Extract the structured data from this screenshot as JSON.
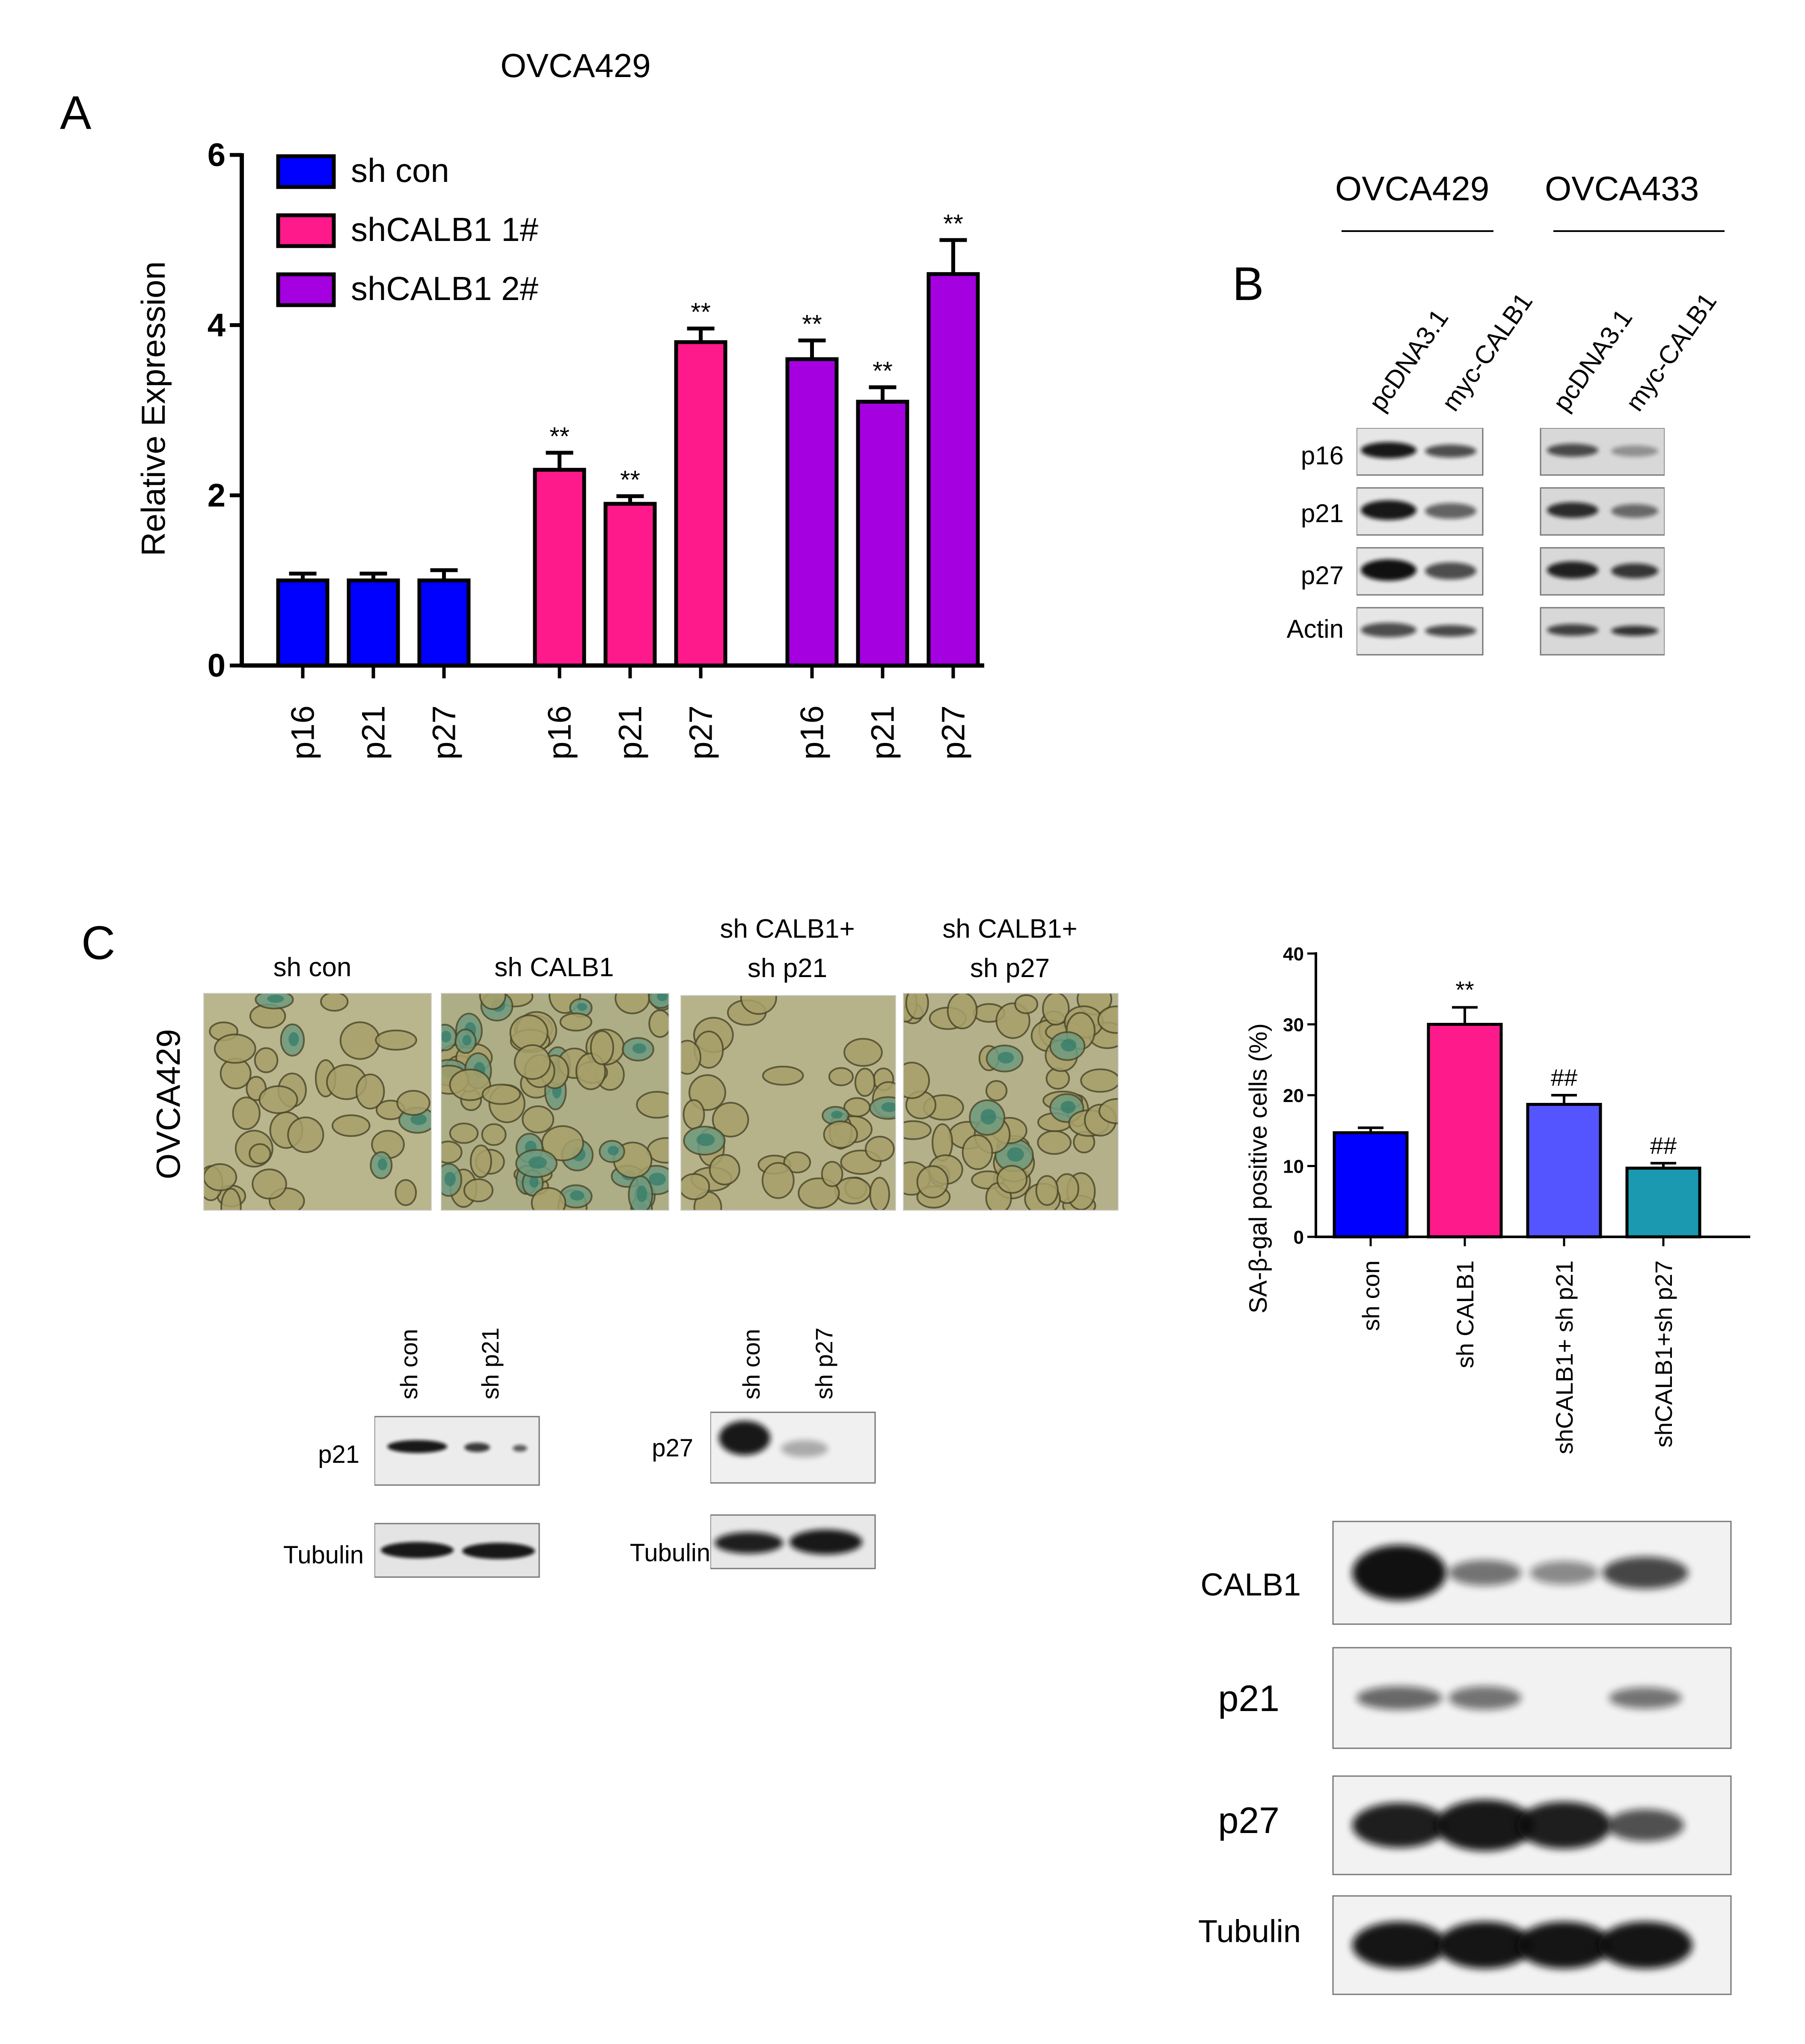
{
  "figure": {
    "panel_letters": {
      "a": "A",
      "b": "B",
      "c": "C"
    }
  },
  "chart_data": [
    {
      "id": "panel-a",
      "type": "bar",
      "title": "OVCA429",
      "ylabel": "Relative Expression",
      "xlabel": "",
      "ylim": [
        0,
        6
      ],
      "yticks": [
        0,
        2,
        4,
        6
      ],
      "categories": [
        "p16",
        "p21",
        "p27"
      ],
      "legend_position": "top-left",
      "series": [
        {
          "name": "sh con",
          "color": "#0000ff",
          "values": [
            1.0,
            1.0,
            1.0
          ],
          "errors": [
            0.08,
            0.08,
            0.12
          ],
          "sig": [
            "",
            "",
            ""
          ]
        },
        {
          "name": "shCALB1 1#",
          "color": "#ff1a8c",
          "values": [
            2.3,
            1.9,
            3.8
          ],
          "errors": [
            0.2,
            0.09,
            0.16
          ],
          "sig": [
            "**",
            "**",
            "**"
          ]
        },
        {
          "name": "shCALB1 2#",
          "color": "#a400e0",
          "values": [
            3.6,
            3.1,
            4.6
          ],
          "errors": [
            0.22,
            0.17,
            0.4
          ],
          "sig": [
            "**",
            "**",
            "**"
          ]
        }
      ]
    },
    {
      "id": "panel-c",
      "type": "bar",
      "ylabel": "SA-β-gal positive cells (%)",
      "xlabel": "",
      "ylim": [
        0,
        40
      ],
      "yticks": [
        0,
        10,
        20,
        30,
        40
      ],
      "categories": [
        "sh con",
        "sh CALB1",
        "shCALB1+ sh p21",
        "shCALB1+sh p27"
      ],
      "colors": [
        "#0000ff",
        "#ff1a8c",
        "#5555ff",
        "#1a99b0"
      ],
      "values": [
        14.7,
        30.0,
        18.7,
        9.7
      ],
      "errors": [
        0.7,
        2.4,
        1.3,
        0.7
      ],
      "sig": [
        "",
        "**",
        "##",
        "##"
      ]
    }
  ],
  "blot_b": {
    "cell_lines": [
      "OVCA429",
      "OVCA433"
    ],
    "lanes": [
      "pcDNA3.1",
      "myc-CALB1",
      "pcDNA3.1",
      "myc-CALB1"
    ],
    "rows": [
      "p16",
      "p21",
      "p27",
      "Actin"
    ]
  },
  "panel_c_images": {
    "row_label": "OVCA429",
    "labels": [
      {
        "line1": "sh con",
        "line2": ""
      },
      {
        "line1": "sh CALB1",
        "line2": ""
      },
      {
        "line1": "sh CALB1+",
        "line2": "sh p21"
      },
      {
        "line1": "sh CALB1+",
        "line2": "sh p27"
      }
    ]
  },
  "blot_small_p21": {
    "lanes": [
      "sh con",
      "sh p21"
    ],
    "rows": [
      "p21",
      "Tubulin"
    ]
  },
  "blot_small_p27": {
    "lanes": [
      "sh con",
      "sh p27"
    ],
    "rows": [
      "p27",
      "Tubulin"
    ]
  },
  "blot_big": {
    "rows": [
      "CALB1",
      "p21",
      "p27",
      "Tubulin"
    ]
  }
}
